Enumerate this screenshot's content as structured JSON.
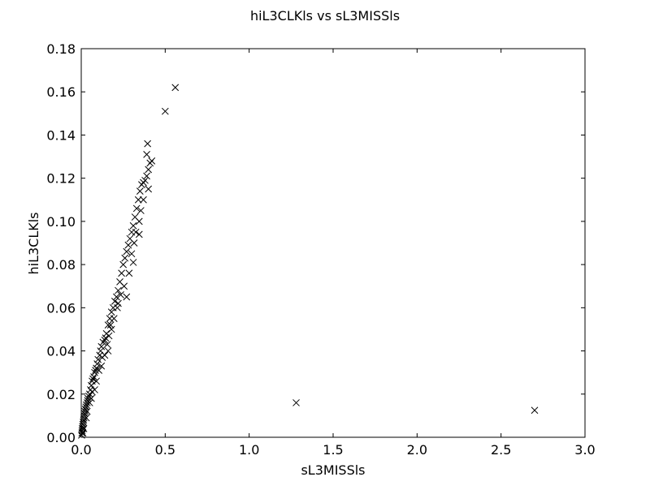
{
  "chart_data": {
    "type": "scatter",
    "title": "hiL3CLKls vs sL3MISSls",
    "xlabel": "sL3MISSls",
    "ylabel": "hiL3CLKls",
    "xlim": [
      0.0,
      3.0
    ],
    "ylim": [
      0.0,
      0.18
    ],
    "xticks": [
      "0.0",
      "0.5",
      "1.0",
      "1.5",
      "2.0",
      "2.5",
      "3.0"
    ],
    "yticks": [
      "0.00",
      "0.02",
      "0.04",
      "0.06",
      "0.08",
      "0.10",
      "0.12",
      "0.14",
      "0.16",
      "0.18"
    ],
    "grid": false,
    "marker": "x",
    "marker_color": "#000000",
    "series": [
      {
        "points": [
          [
            0.002,
            0.001
          ],
          [
            0.004,
            0.002
          ],
          [
            0.005,
            0.003
          ],
          [
            0.006,
            0.004
          ],
          [
            0.008,
            0.005
          ],
          [
            0.01,
            0.006
          ],
          [
            0.012,
            0.007
          ],
          [
            0.014,
            0.008
          ],
          [
            0.016,
            0.009
          ],
          [
            0.018,
            0.01
          ],
          [
            0.02,
            0.011
          ],
          [
            0.022,
            0.012
          ],
          [
            0.025,
            0.013
          ],
          [
            0.028,
            0.014
          ],
          [
            0.03,
            0.015
          ],
          [
            0.035,
            0.016
          ],
          [
            0.038,
            0.017
          ],
          [
            0.04,
            0.018
          ],
          [
            0.045,
            0.019
          ],
          [
            0.05,
            0.02
          ],
          [
            0.055,
            0.022
          ],
          [
            0.06,
            0.024
          ],
          [
            0.065,
            0.026
          ],
          [
            0.07,
            0.027
          ],
          [
            0.075,
            0.028
          ],
          [
            0.08,
            0.03
          ],
          [
            0.085,
            0.031
          ],
          [
            0.09,
            0.032
          ],
          [
            0.095,
            0.034
          ],
          [
            0.1,
            0.036
          ],
          [
            0.11,
            0.038
          ],
          [
            0.115,
            0.04
          ],
          [
            0.12,
            0.042
          ],
          [
            0.13,
            0.044
          ],
          [
            0.14,
            0.045
          ],
          [
            0.145,
            0.046
          ],
          [
            0.15,
            0.048
          ],
          [
            0.16,
            0.052
          ],
          [
            0.17,
            0.055
          ],
          [
            0.18,
            0.058
          ],
          [
            0.19,
            0.06
          ],
          [
            0.2,
            0.063
          ],
          [
            0.21,
            0.065
          ],
          [
            0.22,
            0.068
          ],
          [
            0.23,
            0.072
          ],
          [
            0.24,
            0.076
          ],
          [
            0.25,
            0.08
          ],
          [
            0.26,
            0.083
          ],
          [
            0.27,
            0.086
          ],
          [
            0.28,
            0.089
          ],
          [
            0.29,
            0.092
          ],
          [
            0.3,
            0.095
          ],
          [
            0.31,
            0.098
          ],
          [
            0.32,
            0.102
          ],
          [
            0.33,
            0.106
          ],
          [
            0.34,
            0.11
          ],
          [
            0.35,
            0.114
          ],
          [
            0.36,
            0.117
          ],
          [
            0.37,
            0.118
          ],
          [
            0.38,
            0.119
          ],
          [
            0.39,
            0.121
          ],
          [
            0.4,
            0.124
          ],
          [
            0.41,
            0.127
          ],
          [
            0.42,
            0.128
          ],
          [
            0.39,
            0.131
          ],
          [
            0.395,
            0.136
          ],
          [
            0.035,
            0.012
          ],
          [
            0.05,
            0.016
          ],
          [
            0.065,
            0.021
          ],
          [
            0.09,
            0.026
          ],
          [
            0.105,
            0.031
          ],
          [
            0.125,
            0.037
          ],
          [
            0.155,
            0.043
          ],
          [
            0.165,
            0.047
          ],
          [
            0.175,
            0.052
          ],
          [
            0.195,
            0.055
          ],
          [
            0.215,
            0.06
          ],
          [
            0.235,
            0.066
          ],
          [
            0.255,
            0.07
          ],
          [
            0.285,
            0.076
          ],
          [
            0.3,
            0.085
          ],
          [
            0.315,
            0.09
          ],
          [
            0.325,
            0.095
          ],
          [
            0.345,
            0.1
          ],
          [
            0.355,
            0.105
          ],
          [
            0.37,
            0.11
          ],
          [
            0.4,
            0.115
          ],
          [
            0.27,
            0.065
          ],
          [
            0.22,
            0.062
          ],
          [
            0.31,
            0.081
          ],
          [
            0.345,
            0.094
          ],
          [
            0.18,
            0.05
          ],
          [
            0.16,
            0.04
          ],
          [
            0.14,
            0.038
          ],
          [
            0.12,
            0.033
          ],
          [
            0.08,
            0.022
          ],
          [
            0.06,
            0.018
          ],
          [
            0.03,
            0.009
          ],
          [
            0.015,
            0.004
          ],
          [
            0.01,
            0.002
          ],
          [
            0.5,
            0.151
          ],
          [
            0.56,
            0.162
          ],
          [
            1.28,
            0.016
          ],
          [
            2.7,
            0.0125
          ]
        ]
      }
    ]
  }
}
